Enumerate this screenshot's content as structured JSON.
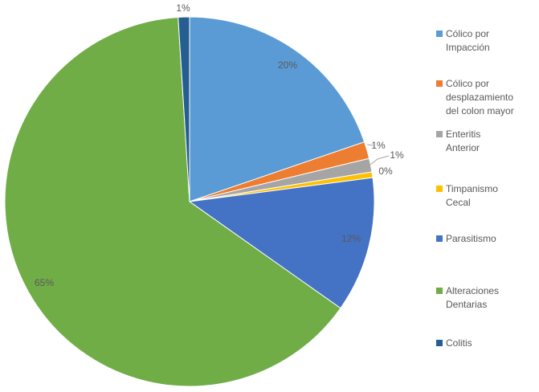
{
  "chart_data": {
    "type": "pie",
    "title": "",
    "categories": [
      "Cólico por\n Impacción",
      "Cólico por\ndesplazamiento\n del colon mayor",
      "Enteritis\n Anterior",
      "Timpanismo\n Cecal",
      "Parasitismo",
      "Alteraciones\n Dentarias",
      "Colitis"
    ],
    "values": [
      20,
      1.5,
      1.2,
      0.5,
      12,
      65,
      1
    ],
    "data_labels": [
      "20%",
      "1%",
      "1%",
      "0%",
      "12%",
      "65%",
      "1%"
    ],
    "colors": [
      "#5B9BD5",
      "#ED7D31",
      "#A5A5A5",
      "#FFC000",
      "#4472C4",
      "#70AD47",
      "#255E91"
    ],
    "legend_position": "right",
    "start_angle_deg": 0,
    "direction": "clockwise"
  }
}
